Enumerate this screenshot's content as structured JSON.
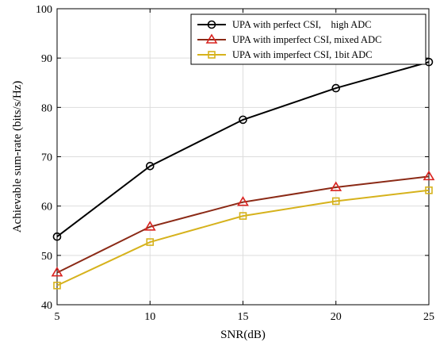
{
  "chart_data": {
    "type": "line",
    "title": "",
    "xlabel": "SNR(dB)",
    "ylabel": "Achievable sum-rate (bits/s/Hz)",
    "xlim": [
      5,
      25
    ],
    "ylim": [
      40,
      100
    ],
    "xticks": [
      5,
      10,
      15,
      20,
      25
    ],
    "yticks": [
      40,
      50,
      60,
      70,
      80,
      90,
      100
    ],
    "grid": true,
    "legend_position": "top-right",
    "x": [
      5,
      10,
      15,
      20,
      25
    ],
    "series": [
      {
        "name": "UPA with perfect CSI,    high ADC",
        "values": [
          53.8,
          68.1,
          77.5,
          83.9,
          89.2
        ],
        "color": "#000000",
        "marker": "circle"
      },
      {
        "name": "UPA with imperfect CSI, mixed ADC",
        "values": [
          46.5,
          55.8,
          60.8,
          63.8,
          66.0
        ],
        "color": "#d9221f",
        "line_color": "#8b2a16",
        "marker": "triangle"
      },
      {
        "name": "UPA with imperfect CSI, 1bit ADC",
        "values": [
          43.9,
          52.7,
          58.0,
          61.0,
          63.2
        ],
        "color": "#d6b21c",
        "marker": "square"
      }
    ]
  }
}
